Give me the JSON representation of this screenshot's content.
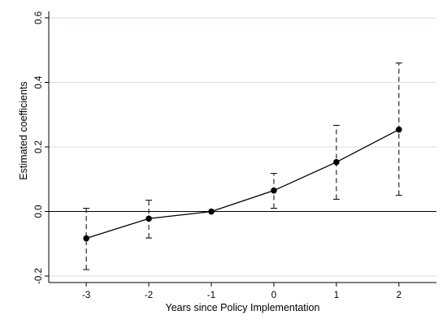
{
  "chart_data": {
    "type": "line",
    "title": "",
    "xlabel": "Years since Policy Implementation",
    "ylabel": "Estimated coefficients",
    "x": [
      -3,
      -2,
      -1,
      0,
      1,
      2
    ],
    "x_tick_labels": [
      "-3",
      "-2",
      "-1",
      "0",
      "1",
      "2"
    ],
    "y_ticks": [
      -0.2,
      0.0,
      0.2,
      0.4,
      0.6
    ],
    "y_tick_labels": [
      "-0.2",
      "0.0",
      "0.2",
      "0.4",
      "0.6"
    ],
    "xlim": [
      -3.6,
      2.6
    ],
    "ylim": [
      -0.22,
      0.62
    ],
    "grid": "horizontal",
    "reference_line_y": 0,
    "series": [
      {
        "values": [
          -0.083,
          -0.022,
          0.0,
          0.065,
          0.153,
          0.254
        ],
        "ci_low": [
          -0.18,
          -0.082,
          0.0,
          0.01,
          0.038,
          0.05
        ],
        "ci_high": [
          0.01,
          0.035,
          0.0,
          0.118,
          0.267,
          0.46
        ]
      }
    ],
    "colors": {
      "line": "#000000",
      "grid": "#cfe3e6",
      "background": "#ffffff"
    }
  }
}
